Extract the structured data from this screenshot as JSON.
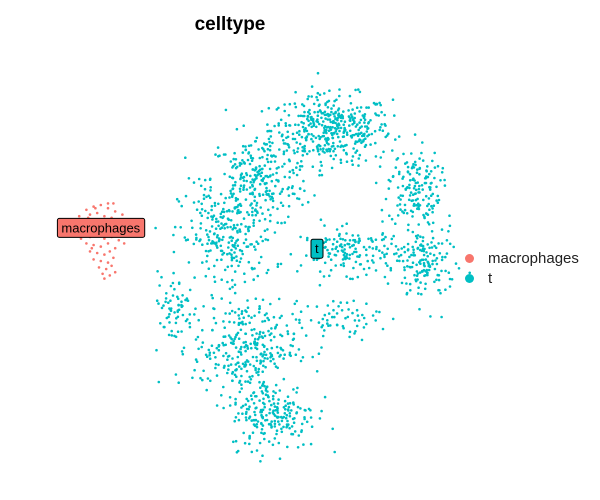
{
  "chart_data": {
    "type": "scatter",
    "title": "celltype",
    "xlabel": "",
    "ylabel": "",
    "grid": false,
    "legend_position": "right",
    "series": [
      {
        "name": "macrophages",
        "color": "#F8766D",
        "label": "macrophages",
        "label_at": [
          -2.2,
          0.55
        ],
        "points": [
          [
            -2.6,
            1.1
          ],
          [
            -2.4,
            1.2
          ],
          [
            -2.2,
            1.25
          ],
          [
            -2.0,
            1.15
          ],
          [
            -1.8,
            1.05
          ],
          [
            -2.8,
            0.9
          ],
          [
            -2.5,
            0.95
          ],
          [
            -2.3,
            1.0
          ],
          [
            -2.1,
            0.9
          ],
          [
            -1.9,
            0.85
          ],
          [
            -1.7,
            0.8
          ],
          [
            -2.7,
            0.7
          ],
          [
            -2.45,
            0.75
          ],
          [
            -2.25,
            0.7
          ],
          [
            -2.05,
            0.65
          ],
          [
            -1.85,
            0.6
          ],
          [
            -1.65,
            0.7
          ],
          [
            -2.9,
            0.5
          ],
          [
            -2.6,
            0.55
          ],
          [
            -2.35,
            0.5
          ],
          [
            -2.15,
            0.45
          ],
          [
            -1.95,
            0.4
          ],
          [
            -1.75,
            0.5
          ],
          [
            -2.7,
            0.3
          ],
          [
            -2.5,
            0.25
          ],
          [
            -2.3,
            0.3
          ],
          [
            -2.1,
            0.2
          ],
          [
            -1.9,
            0.25
          ],
          [
            -1.7,
            0.15
          ],
          [
            -2.6,
            0.05
          ],
          [
            -2.4,
            0.0
          ],
          [
            -2.2,
            -0.05
          ],
          [
            -2.0,
            0.05
          ],
          [
            -1.8,
            -0.1
          ],
          [
            -2.5,
            -0.2
          ],
          [
            -2.3,
            -0.25
          ],
          [
            -2.1,
            -0.3
          ],
          [
            -1.95,
            -0.2
          ],
          [
            -2.4,
            -0.45
          ],
          [
            -2.2,
            -0.5
          ],
          [
            -2.0,
            -0.55
          ],
          [
            -1.85,
            -0.4
          ],
          [
            -2.25,
            -0.7
          ],
          [
            -2.05,
            -0.75
          ],
          [
            -1.9,
            -0.65
          ],
          [
            -2.15,
            -0.9
          ],
          [
            -1.95,
            -0.95
          ],
          [
            -1.8,
            -0.85
          ],
          [
            -2.55,
            0.85
          ],
          [
            -2.35,
            1.15
          ],
          [
            -1.6,
            0.95
          ],
          [
            -2.75,
            0.2
          ],
          [
            -1.6,
            0.3
          ],
          [
            -1.55,
            0.05
          ],
          [
            -2.45,
            -0.1
          ],
          [
            -2.1,
            -1.05
          ],
          [
            -1.85,
            1.3
          ],
          [
            -2.0,
            1.3
          ]
        ]
      },
      {
        "name": "t",
        "color": "#00BFC4",
        "label": "t",
        "label_at": [
          3.8,
          -0.1
        ],
        "clusters": [
          {
            "cx": 4.2,
            "cy": 3.6,
            "sx": 1.4,
            "sy": 0.9,
            "n": 420
          },
          {
            "cx": 2.2,
            "cy": 2.0,
            "sx": 1.2,
            "sy": 1.2,
            "n": 260
          },
          {
            "cx": 6.5,
            "cy": 1.8,
            "sx": 0.6,
            "sy": 1.0,
            "n": 150
          },
          {
            "cx": 1.3,
            "cy": 0.2,
            "sx": 1.1,
            "sy": 1.4,
            "n": 240
          },
          {
            "cx": 4.8,
            "cy": -0.2,
            "sx": 1.2,
            "sy": 0.6,
            "n": 160
          },
          {
            "cx": 6.8,
            "cy": -0.6,
            "sx": 0.7,
            "sy": 1.1,
            "n": 150
          },
          {
            "cx": 1.8,
            "cy": -3.2,
            "sx": 1.2,
            "sy": 1.2,
            "n": 300
          },
          {
            "cx": 2.6,
            "cy": -5.3,
            "sx": 1.0,
            "sy": 0.9,
            "n": 210
          },
          {
            "cx": -0.2,
            "cy": -2.0,
            "sx": 0.5,
            "sy": 0.9,
            "n": 60
          },
          {
            "cx": 4.5,
            "cy": -2.3,
            "sx": 0.9,
            "sy": 0.5,
            "n": 60
          }
        ]
      }
    ]
  }
}
